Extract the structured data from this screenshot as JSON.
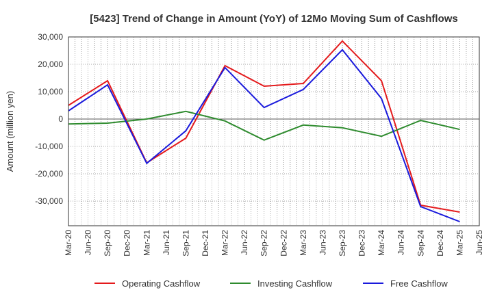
{
  "chart_data": {
    "type": "line",
    "title": "[5423]  Trend of Change in Amount (YoY) of 12Mo Moving Sum of Cashflows",
    "xlabel": "",
    "ylabel": "Amount (million yen)",
    "ylim": [
      -39000,
      30000
    ],
    "yticks": [
      30000,
      20000,
      10000,
      0,
      -10000,
      -20000,
      -30000
    ],
    "ytick_labels": [
      "30,000",
      "20,000",
      "10,000",
      "0",
      "-10,000",
      "-20,000",
      "-30,000"
    ],
    "categories": [
      "Mar-20",
      "Jun-20",
      "Sep-20",
      "Dec-20",
      "Mar-21",
      "Jun-21",
      "Sep-21",
      "Dec-21",
      "Mar-22",
      "Jun-22",
      "Sep-22",
      "Dec-22",
      "Mar-23",
      "Jun-23",
      "Sep-23",
      "Dec-23",
      "Mar-24",
      "Jun-24",
      "Sep-24",
      "Dec-24",
      "Mar-25",
      "Jun-25"
    ],
    "grid": true,
    "legend_position": "bottom",
    "series": [
      {
        "name": "Operating Cashflow",
        "color": "#e41a1c",
        "points": [
          {
            "x": "Mar-20",
            "y": 5000
          },
          {
            "x": "Sep-20",
            "y": 14000
          },
          {
            "x": "Mar-21",
            "y": -16000
          },
          {
            "x": "Sep-21",
            "y": -7000
          },
          {
            "x": "Mar-22",
            "y": 19500
          },
          {
            "x": "Sep-22",
            "y": 12000
          },
          {
            "x": "Mar-23",
            "y": 13000
          },
          {
            "x": "Sep-23",
            "y": 28500
          },
          {
            "x": "Mar-24",
            "y": 14000
          },
          {
            "x": "Sep-24",
            "y": -31500
          },
          {
            "x": "Mar-25",
            "y": -34000
          }
        ]
      },
      {
        "name": "Investing Cashflow",
        "color": "#2e8b2e",
        "points": [
          {
            "x": "Mar-20",
            "y": -1800
          },
          {
            "x": "Sep-20",
            "y": -1500
          },
          {
            "x": "Mar-21",
            "y": 0
          },
          {
            "x": "Sep-21",
            "y": 2800
          },
          {
            "x": "Mar-22",
            "y": -700
          },
          {
            "x": "Sep-22",
            "y": -7700
          },
          {
            "x": "Mar-23",
            "y": -2200
          },
          {
            "x": "Sep-23",
            "y": -3200
          },
          {
            "x": "Mar-24",
            "y": -6300
          },
          {
            "x": "Sep-24",
            "y": -500
          },
          {
            "x": "Mar-25",
            "y": -3800
          }
        ]
      },
      {
        "name": "Free Cashflow",
        "color": "#1a1adc",
        "points": [
          {
            "x": "Mar-20",
            "y": 3000
          },
          {
            "x": "Sep-20",
            "y": 12500
          },
          {
            "x": "Mar-21",
            "y": -16200
          },
          {
            "x": "Sep-21",
            "y": -4300
          },
          {
            "x": "Mar-22",
            "y": 18800
          },
          {
            "x": "Sep-22",
            "y": 4200
          },
          {
            "x": "Mar-23",
            "y": 10800
          },
          {
            "x": "Sep-23",
            "y": 25300
          },
          {
            "x": "Mar-24",
            "y": 7500
          },
          {
            "x": "Sep-24",
            "y": -32000
          },
          {
            "x": "Mar-25",
            "y": -37500
          }
        ]
      }
    ]
  }
}
